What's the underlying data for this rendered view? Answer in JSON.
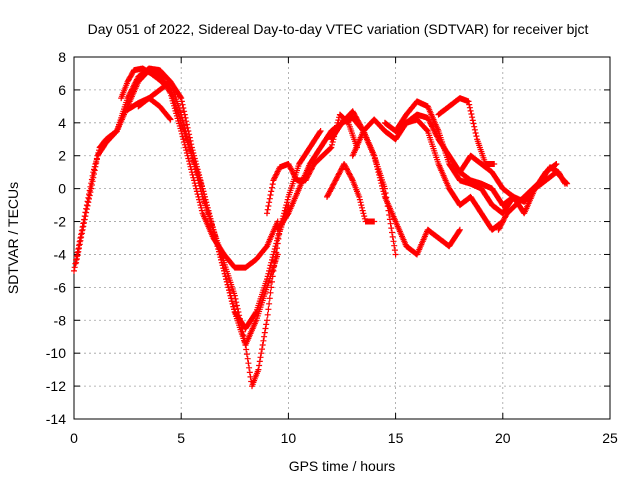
{
  "chart_data": {
    "type": "scatter",
    "title": "Day 051 of 2022, Sidereal Day-to-day VTEC variation (SDTVAR) for receiver bjct",
    "xlabel": "GPS time / hours",
    "ylabel": "SDTVAR / TECUs",
    "xlim": [
      0,
      25
    ],
    "ylim": [
      -14,
      8
    ],
    "xticks": [
      0,
      5,
      10,
      15,
      20,
      25
    ],
    "yticks": [
      -14,
      -12,
      -10,
      -8,
      -6,
      -4,
      -2,
      0,
      2,
      4,
      6,
      8
    ],
    "grid": true,
    "marker": "+",
    "color": "#ff0000",
    "series": [
      {
        "x": [
          0.0,
          0.3,
          0.6,
          0.9,
          1.2,
          1.5,
          2.0,
          2.5,
          3.0,
          3.5,
          4.0,
          4.5,
          5.0,
          5.5,
          6.0,
          6.5,
          7.0,
          7.5,
          8.0,
          8.5,
          9.0,
          9.5
        ],
        "y": [
          -5.0,
          -3.0,
          -1.0,
          1.0,
          2.5,
          3.0,
          3.5,
          5.0,
          6.5,
          7.2,
          7.0,
          5.8,
          3.5,
          1.0,
          -1.5,
          -3.0,
          -4.0,
          -4.8,
          -4.8,
          -4.3,
          -3.5,
          -2.0
        ]
      },
      {
        "x": [
          0.1,
          0.4,
          0.8,
          1.1,
          1.5,
          2.0,
          2.5,
          3.0,
          3.5,
          4.0,
          4.5,
          5.0,
          5.5,
          6.0,
          6.5,
          7.0,
          7.5,
          8.0,
          8.5,
          9.0,
          9.5,
          10.0
        ],
        "y": [
          -4.5,
          -2.5,
          0.0,
          2.0,
          2.8,
          3.5,
          5.5,
          6.8,
          7.3,
          7.2,
          6.5,
          4.5,
          2.0,
          -0.5,
          -2.5,
          -5.0,
          -7.5,
          -8.5,
          -7.5,
          -5.5,
          -3.0,
          -1.0
        ]
      },
      {
        "x": [
          2.2,
          2.5,
          2.8,
          3.2,
          3.6,
          4.0,
          4.5,
          5.0,
          5.5,
          6.0,
          6.5,
          7.0,
          7.5,
          8.0,
          8.5,
          9.0,
          9.5
        ],
        "y": [
          5.5,
          6.5,
          7.2,
          7.3,
          7.0,
          6.6,
          6.0,
          4.0,
          2.0,
          0.0,
          -2.5,
          -5.0,
          -7.5,
          -9.5,
          -8.0,
          -6.0,
          -4.0
        ]
      },
      {
        "x": [
          3.0,
          3.5,
          4.0,
          4.5,
          5.0,
          5.5,
          6.0,
          6.5,
          7.0,
          7.5,
          8.0,
          8.3,
          8.6,
          9.0,
          9.3,
          9.6,
          10.0,
          10.5,
          11.0,
          11.5
        ],
        "y": [
          5.0,
          5.5,
          6.0,
          6.5,
          5.5,
          2.5,
          0.0,
          -2.5,
          -4.5,
          -6.5,
          -9.5,
          -12.0,
          -11.0,
          -8.0,
          -5.0,
          -2.5,
          -0.5,
          1.5,
          2.5,
          3.5
        ]
      },
      {
        "x": [
          2.5,
          3.0,
          3.5,
          4.0,
          4.5
        ],
        "y": [
          4.8,
          5.2,
          5.5,
          5.0,
          4.2
        ]
      },
      {
        "x": [
          9.0,
          9.3,
          9.6,
          10.0,
          10.4,
          10.8,
          11.2,
          11.6,
          12.0,
          12.4,
          12.8,
          13.2
        ],
        "y": [
          -1.5,
          0.5,
          1.3,
          1.5,
          0.5,
          0.5,
          1.5,
          2.0,
          2.5,
          4.5,
          4.0,
          2.5
        ]
      },
      {
        "x": [
          9.5,
          10.0,
          10.5,
          11.0,
          11.5,
          12.0,
          12.5,
          13.0,
          13.5,
          14.0,
          14.5,
          15.0
        ],
        "y": [
          -2.5,
          -1.5,
          0.0,
          1.5,
          2.5,
          3.5,
          4.0,
          4.3,
          3.5,
          2.0,
          0.0,
          -4.0
        ]
      },
      {
        "x": [
          11.8,
          12.2,
          12.6,
          13.0,
          13.3,
          13.6,
          14.0
        ],
        "y": [
          -0.5,
          0.5,
          1.5,
          0.5,
          -0.5,
          -2.0,
          -2.0
        ]
      },
      {
        "x": [
          12.0,
          12.5,
          13.0,
          13.5,
          14.0,
          14.5,
          15.0,
          15.5,
          16.0,
          16.5,
          17.0,
          17.5,
          18.0
        ],
        "y": [
          3.0,
          4.0,
          4.7,
          3.5,
          2.0,
          -0.5,
          -2.0,
          -3.5,
          -4.0,
          -2.5,
          -3.0,
          -3.5,
          -2.5
        ]
      },
      {
        "x": [
          13.0,
          13.5,
          14.0,
          14.5,
          15.0,
          15.5,
          16.0,
          16.5,
          17.0,
          17.5,
          18.0,
          18.5,
          19.0,
          19.5,
          20.0
        ],
        "y": [
          2.0,
          3.5,
          4.2,
          3.5,
          3.0,
          4.0,
          4.2,
          3.5,
          1.5,
          0.0,
          -1.0,
          -0.5,
          -1.5,
          -2.5,
          -2.0
        ]
      },
      {
        "x": [
          14.5,
          15.0,
          15.5,
          16.0,
          16.5,
          17.0,
          17.5,
          18.0,
          18.5,
          19.0,
          19.5,
          20.0,
          20.5
        ],
        "y": [
          4.0,
          3.5,
          4.5,
          5.3,
          5.0,
          3.5,
          1.5,
          0.5,
          0.3,
          0.0,
          -1.0,
          -1.5,
          -0.5
        ]
      },
      {
        "x": [
          15.0,
          15.5,
          16.0,
          16.5,
          17.0,
          17.5,
          18.0,
          18.5,
          19.0,
          19.5,
          20.0
        ],
        "y": [
          3.5,
          4.0,
          4.5,
          4.3,
          3.0,
          2.0,
          1.0,
          0.5,
          0.3,
          0.0,
          -1.0
        ]
      },
      {
        "x": [
          17.0,
          17.5,
          18.0,
          18.4,
          18.8,
          19.2,
          19.6
        ],
        "y": [
          4.5,
          5.0,
          5.5,
          5.3,
          3.0,
          1.5,
          1.5
        ]
      },
      {
        "x": [
          18.0,
          18.5,
          19.0,
          19.5,
          20.0,
          20.5,
          21.0,
          21.5,
          22.0,
          22.5,
          23.0
        ],
        "y": [
          1.0,
          2.0,
          1.5,
          1.0,
          0.0,
          -0.5,
          -0.8,
          0.0,
          0.5,
          1.0,
          0.3
        ]
      },
      {
        "x": [
          19.8,
          20.2,
          20.6,
          21.0,
          21.4,
          21.8,
          22.2,
          22.6,
          22.9
        ],
        "y": [
          -2.5,
          -1.5,
          -1.0,
          -0.5,
          0.0,
          0.5,
          1.3,
          1.0,
          0.3
        ]
      },
      {
        "x": [
          20.0,
          20.5,
          21.0,
          21.5,
          22.0,
          22.5
        ],
        "y": [
          -1.0,
          -0.5,
          -1.5,
          0.0,
          1.0,
          1.5
        ]
      }
    ]
  }
}
